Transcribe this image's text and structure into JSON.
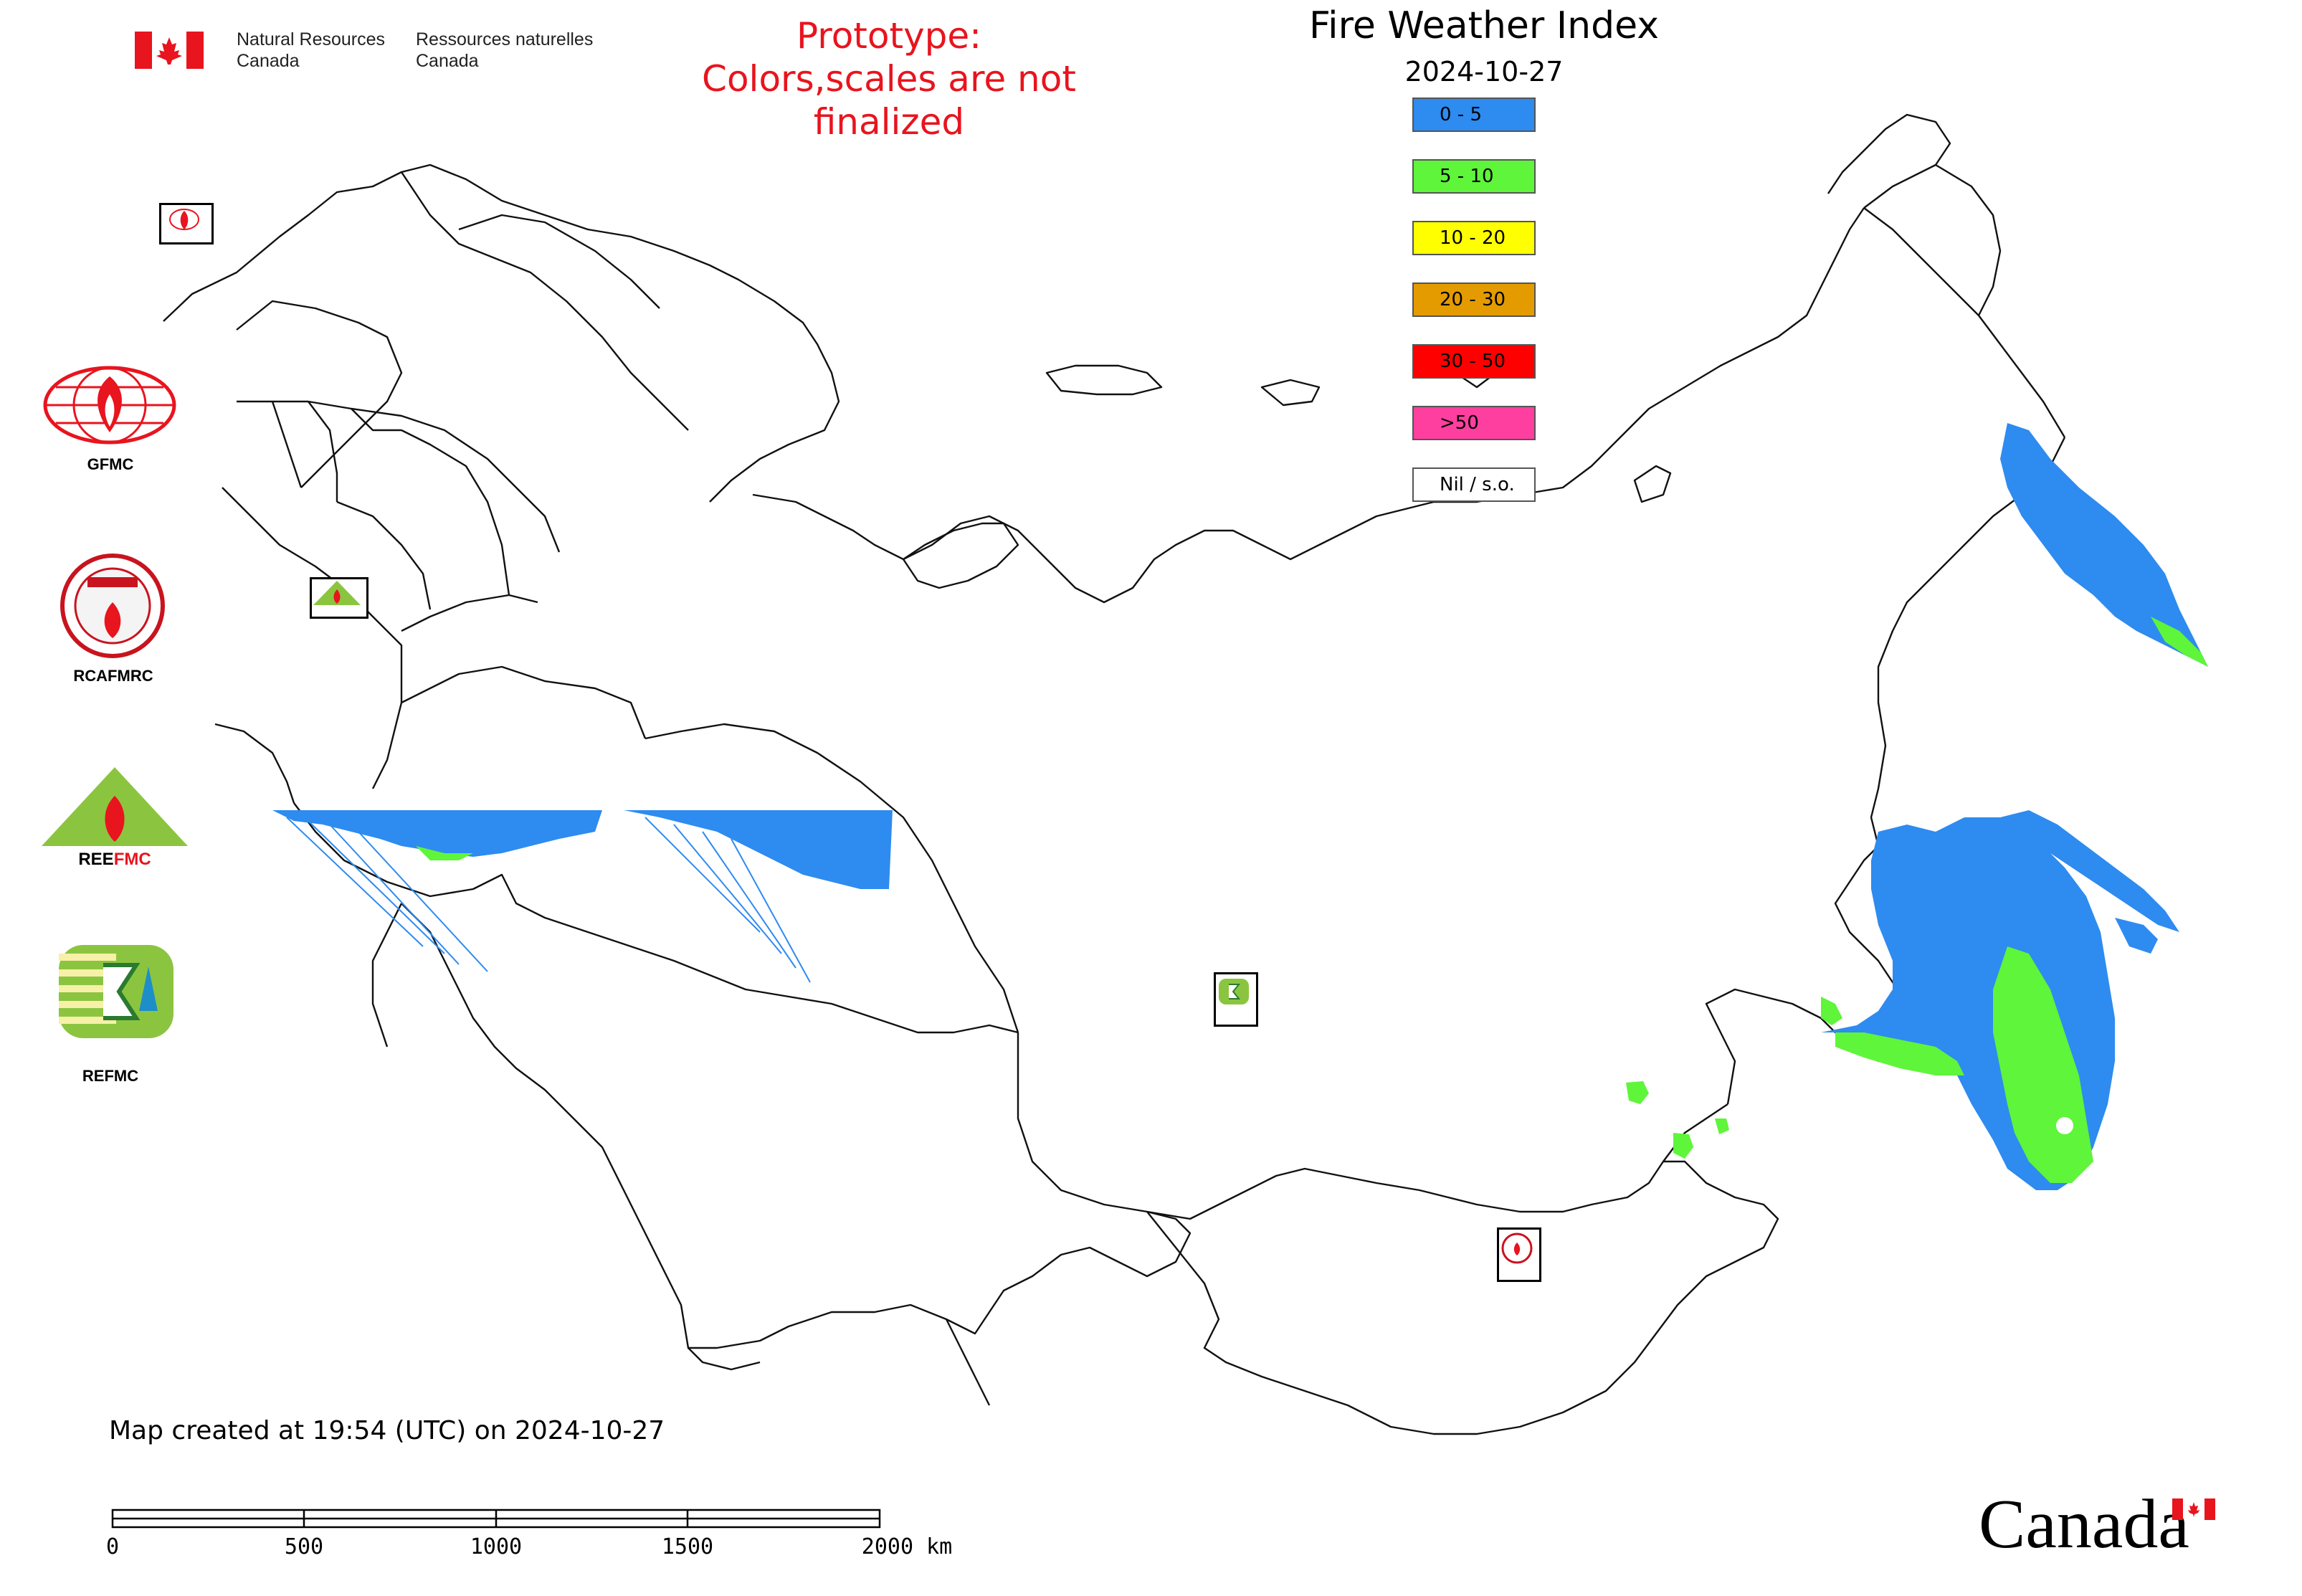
{
  "header": {
    "org_en_line1": "Natural Resources",
    "org_en_line2": "Canada",
    "org_fr_line1": "Ressources naturelles",
    "org_fr_line2": "Canada",
    "prototype_line1": "Prototype:",
    "prototype_line2": "Colors,scales are not finalized"
  },
  "map": {
    "title": "Fire Weather Index",
    "date": "2024-10-27"
  },
  "legend": [
    {
      "label": "0 - 5",
      "color": "#2e8bf0"
    },
    {
      "label": "5 - 10",
      "color": "#5ef53a"
    },
    {
      "label": "10 - 20",
      "color": "#ffff00"
    },
    {
      "label": "20 - 30",
      "color": "#e39b00"
    },
    {
      "label": "30 - 50",
      "color": "#ff0000"
    },
    {
      "label": ">50",
      "color": "#ff3fa0"
    },
    {
      "label": "Nil / s.o.",
      "color": "#ffffff"
    }
  ],
  "logos": {
    "gfmc": "GFMC",
    "rcafmrc": "RCAFMRC",
    "reefmc": "REEFMC",
    "refmc": "REFMC"
  },
  "footer": {
    "created": "Map created at 19:54 (UTC) on 2024-10-27",
    "scale_labels": [
      "0",
      "500",
      "1000",
      "1500",
      "2000 km"
    ],
    "wordmark": "Canada"
  }
}
